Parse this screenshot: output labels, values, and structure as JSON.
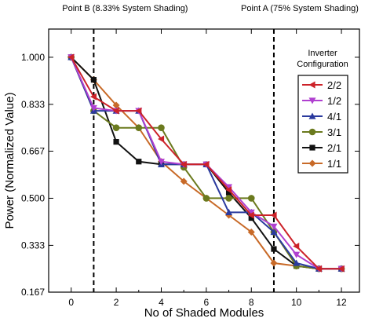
{
  "chart_data": {
    "type": "line",
    "xlabel": "No of Shaded Modules",
    "ylabel": "Power (Normalized Value)",
    "xlim": [
      -1,
      12.8
    ],
    "ylim": [
      0.167,
      1.1
    ],
    "xticks": [
      0,
      2,
      4,
      6,
      8,
      10,
      12
    ],
    "xtick_labels": [
      "0",
      "2",
      "4",
      "6",
      "8",
      "10",
      "12"
    ],
    "yticks": [
      0.167,
      0.333,
      0.5,
      0.667,
      0.833,
      1.0
    ],
    "ytick_labels": [
      "0.167",
      "0.333",
      "0.500",
      "0.667",
      "0.833",
      "1.000"
    ],
    "grid": false,
    "annotations": [
      {
        "label": "Point B (8.33% System Shading)",
        "x": 1
      },
      {
        "label": "Point A (75% System Shading)",
        "x": 9
      }
    ],
    "legend": {
      "title_line1": "Inverter",
      "title_line2": "Configuration",
      "placement": "right"
    },
    "x": [
      0,
      1,
      2,
      3,
      4,
      5,
      6,
      7,
      8,
      9,
      10,
      11,
      12
    ],
    "series": [
      {
        "name": "2/2",
        "color": "#cc2229",
        "marker": "triangle-left",
        "values": [
          1.0,
          0.86,
          0.81,
          0.81,
          0.71,
          0.62,
          0.62,
          0.53,
          0.44,
          0.44,
          0.33,
          0.25,
          0.25
        ]
      },
      {
        "name": "1/2",
        "color": "#b040d0",
        "marker": "triangle-down",
        "values": [
          1.0,
          0.82,
          0.81,
          0.81,
          0.63,
          0.62,
          0.62,
          0.54,
          0.45,
          0.4,
          0.3,
          0.25,
          0.25
        ]
      },
      {
        "name": "4/1",
        "color": "#2a3a9e",
        "marker": "triangle-up",
        "values": [
          1.0,
          0.81,
          0.81,
          0.81,
          0.62,
          0.62,
          0.62,
          0.45,
          0.45,
          0.38,
          0.27,
          0.25,
          0.25
        ]
      },
      {
        "name": "3/1",
        "color": "#6b7a1e",
        "marker": "circle",
        "values": [
          1.0,
          0.81,
          0.75,
          0.75,
          0.75,
          0.61,
          0.5,
          0.5,
          0.5,
          0.38,
          0.26,
          0.25,
          0.25
        ]
      },
      {
        "name": "2/1",
        "color": "#111111",
        "marker": "square",
        "values": [
          1.0,
          0.92,
          0.7,
          0.63,
          0.62,
          0.62,
          0.62,
          0.52,
          0.43,
          0.32,
          0.26,
          0.25,
          0.25
        ]
      },
      {
        "name": "1/1",
        "color": "#c86a28",
        "marker": "diamond",
        "values": [
          1.0,
          0.92,
          0.83,
          0.75,
          0.63,
          0.56,
          0.5,
          0.44,
          0.38,
          0.27,
          0.26,
          0.25,
          0.25
        ]
      }
    ]
  }
}
